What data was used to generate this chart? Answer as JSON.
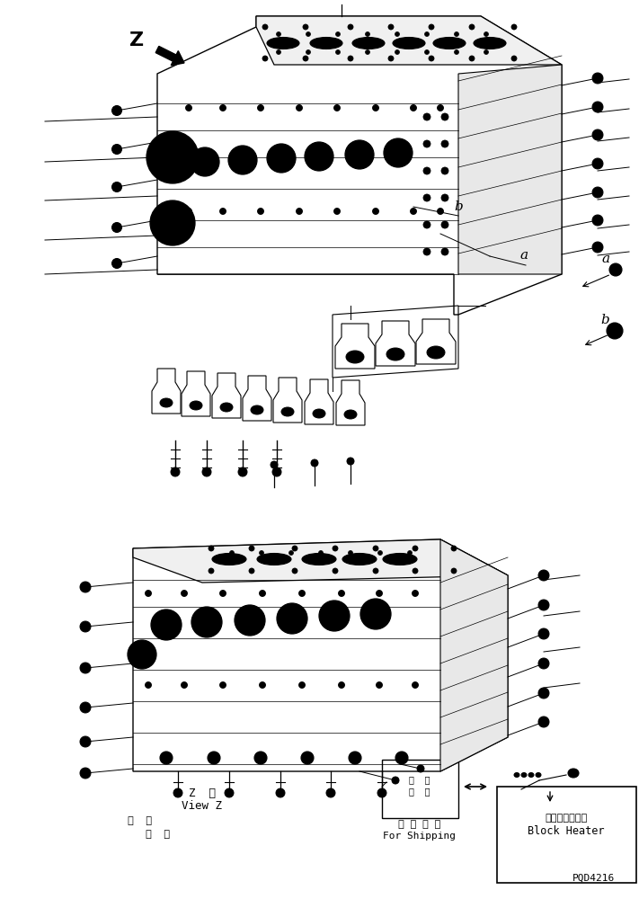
{
  "bg_color": "#ffffff",
  "line_color": "#000000",
  "title_code": "PQD4216",
  "for_shipping_jp": "運 搜 部 品",
  "for_shipping_en": "For Shipping",
  "block_heater_jp": "ブロックヒータ",
  "block_heater_en": "Block Heater",
  "label_a": "a",
  "label_b": "b",
  "label_z": "Z",
  "view_z_jp": "Z  視",
  "view_z_en": "View Z"
}
